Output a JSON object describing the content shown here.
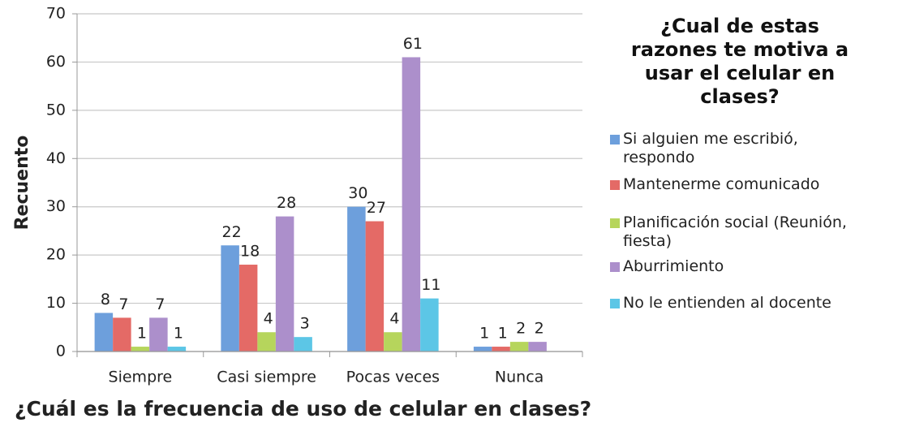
{
  "chart_data": {
    "type": "bar",
    "legend_title": "¿Cual de estas razones te motiva a usar el celular en clases?",
    "x_label": "¿Cuál es la frecuencia de uso de celular en clases?",
    "y_label": "Recuento",
    "categories": [
      "Siempre",
      "Casi siempre",
      "Pocas veces",
      "Nunca"
    ],
    "series": [
      {
        "name": "Si alguien me escribió, respondo",
        "color": "#6d9fdc",
        "values": [
          8,
          22,
          30,
          1
        ]
      },
      {
        "name": "Mantenerme comunicado",
        "color": "#e46a66",
        "values": [
          7,
          18,
          27,
          1
        ]
      },
      {
        "name": "Planificación social (Reunión, fiesta)",
        "color": "#b6d55c",
        "values": [
          1,
          4,
          4,
          2
        ]
      },
      {
        "name": "Aburrimiento",
        "color": "#ac8fcb",
        "values": [
          7,
          28,
          61,
          2
        ]
      },
      {
        "name": "No le entienden al docente",
        "color": "#5cc6e6",
        "values": [
          1,
          3,
          11,
          null
        ]
      }
    ],
    "ylim": [
      0,
      70
    ],
    "yticks": [
      0,
      10,
      20,
      30,
      40,
      50,
      60,
      70
    ],
    "grid": true,
    "legend": "right"
  }
}
